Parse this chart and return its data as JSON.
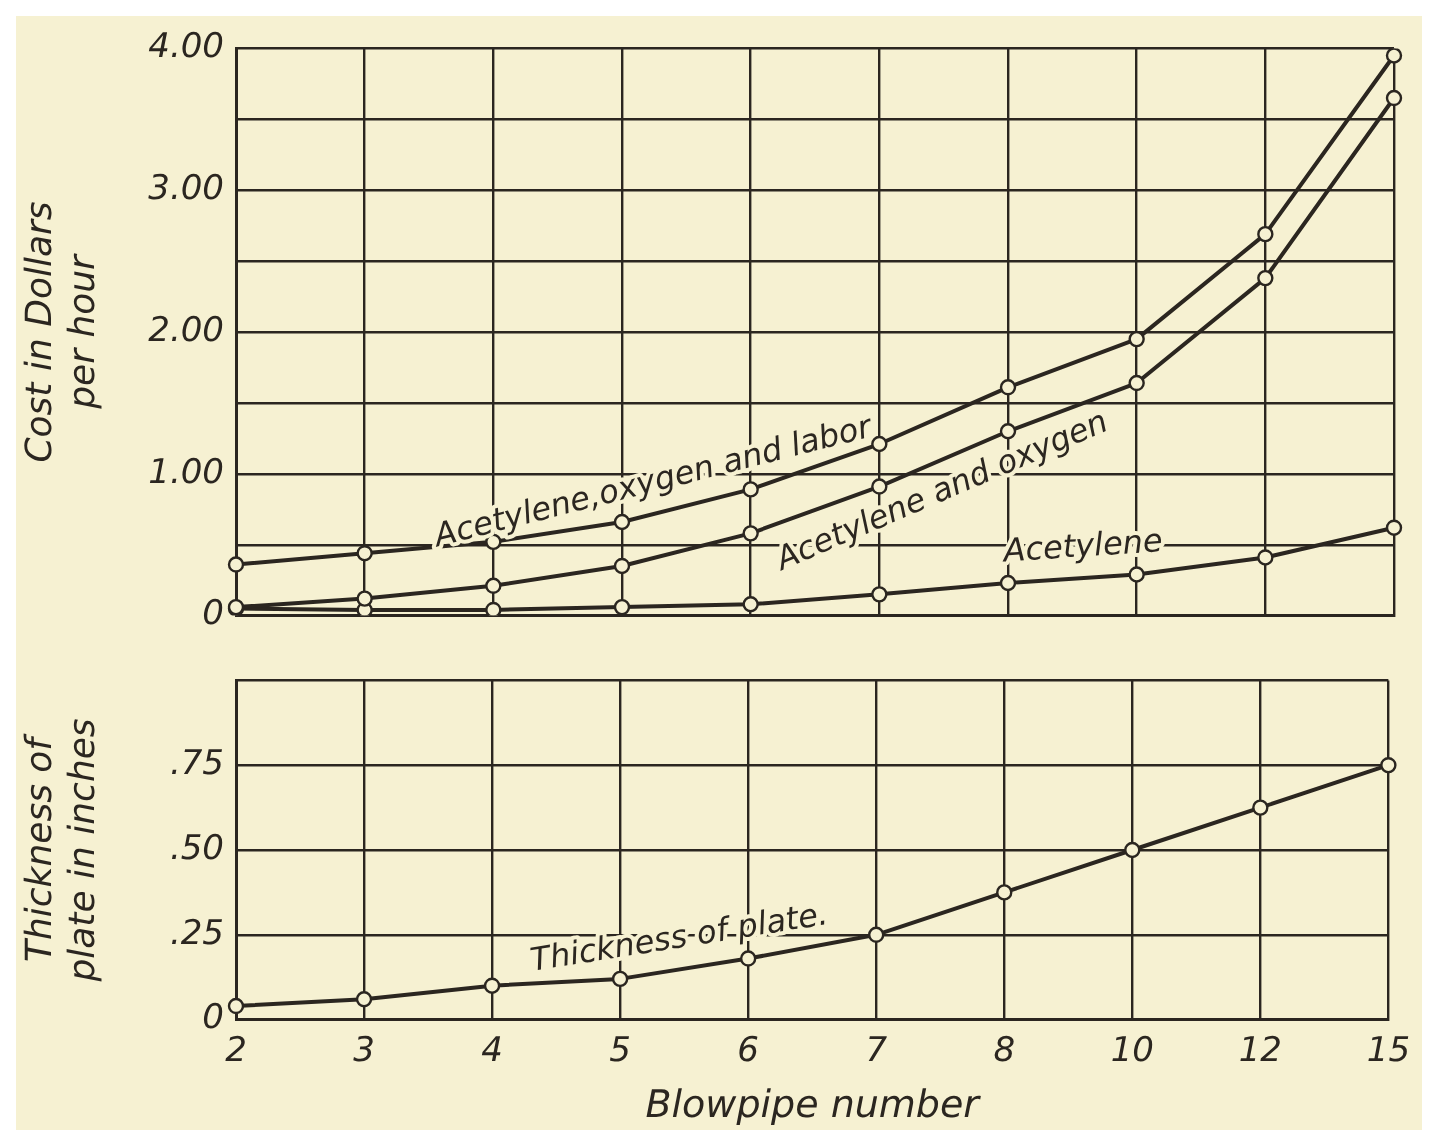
{
  "chart_data": [
    {
      "type": "line",
      "ylabel": "Cost in Dollars per hour",
      "categories": [
        "2",
        "3",
        "4",
        "5",
        "6",
        "7",
        "8",
        "10",
        "12",
        "15"
      ],
      "ylim": [
        0,
        4
      ],
      "yticks": [
        0,
        {
          "value": 0.5,
          "label": null
        },
        {
          "value": 1,
          "label": "1.00"
        },
        {
          "value": 1.5,
          "label": null
        },
        {
          "value": 2,
          "label": "2.00"
        },
        {
          "value": 2.5,
          "label": null
        },
        {
          "value": 3,
          "label": "3.00"
        },
        {
          "value": 3.5,
          "label": null
        },
        {
          "value": 4,
          "label": "4.00"
        }
      ],
      "grid": true,
      "legend": false,
      "tick_labels": "y",
      "marker": "circle",
      "line_style": "solid",
      "series": [
        {
          "name": "Acetylene,oxygen and labor",
          "color": "#2b2620",
          "values": [
            0.36,
            0.44,
            0.52,
            0.66,
            0.89,
            1.21,
            1.61,
            1.95,
            2.69,
            3.95
          ]
        },
        {
          "name": "Acetylene and oxygen",
          "color": "#2b2620",
          "values": [
            0.06,
            0.12,
            0.21,
            0.35,
            0.58,
            0.91,
            1.3,
            1.64,
            2.38,
            3.65
          ]
        },
        {
          "name": "Acetylene",
          "color": "#2b2620",
          "values": [
            0.05,
            0.04,
            0.04,
            0.06,
            0.08,
            0.15,
            0.23,
            0.29,
            0.41,
            0.62
          ]
        }
      ]
    },
    {
      "type": "line",
      "xlabel": "Blowpipe number",
      "ylabel": "Thickness of plate in inches",
      "categories": [
        "2",
        "3",
        "4",
        "5",
        "6",
        "7",
        "8",
        "10",
        "12",
        "15"
      ],
      "ylim": [
        0,
        1
      ],
      "yticks": [
        0,
        {
          "value": 0.25,
          "label": ".25"
        },
        {
          "value": 0.5,
          "label": ".50"
        },
        {
          "value": 0.75,
          "label": ".75"
        },
        {
          "value": 1,
          "label": null
        }
      ],
      "grid": true,
      "legend": false,
      "marker": "circle",
      "line_style": "solid",
      "series": [
        {
          "name": "Thickness of plate.",
          "color": "#2b2620",
          "values": [
            0.04,
            0.06,
            0.1,
            0.12,
            0.18,
            0.25,
            0.375,
            0.5,
            0.625,
            0.75
          ]
        }
      ]
    }
  ]
}
